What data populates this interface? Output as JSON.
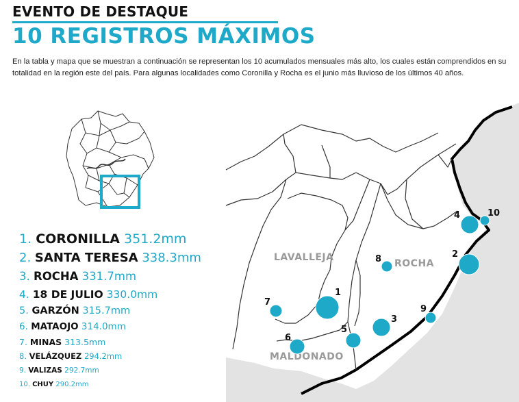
{
  "header": {
    "kicker": "EVENTO DE DESTAQUE",
    "title": "10 REGISTROS MÁXIMOS"
  },
  "intro": {
    "line1": "En la tabla y mapa que se muestran a continuación se representan los 10 acumulados mensuales más alto, los cuales están comprendidos en su",
    "line2": "totalidad en la región este del país. Para algunas localidades como Coronilla y Rocha es el junio más lluvioso de los últimos 40 años."
  },
  "colors": {
    "accent": "#1fa9c9",
    "text": "#111111",
    "region_label": "#9a9a9a",
    "marker": "#1fa9c9"
  },
  "ranking": [
    {
      "num": "1.",
      "name": "CORONILLA",
      "value": "351.2mm"
    },
    {
      "num": "2.",
      "name": "SANTA TERESA",
      "value": "338.3mm"
    },
    {
      "num": "3.",
      "name": "ROCHA",
      "value": "331.7mm"
    },
    {
      "num": "4.",
      "name": "18 DE JULIO",
      "value": "330.0mm"
    },
    {
      "num": "5.",
      "name": "GARZÓN",
      "value": "315.7mm"
    },
    {
      "num": "6.",
      "name": "MATAOJO",
      "value": "314.0mm"
    },
    {
      "num": "7.",
      "name": "MINAS",
      "value": "313.5mm"
    },
    {
      "num": "8.",
      "name": "VELÁZQUEZ",
      "value": "294.2mm"
    },
    {
      "num": "9.",
      "name": "VALIZAS",
      "value": "292.7mm"
    },
    {
      "num": "10.",
      "name": "CHUY",
      "value": "290.2mm"
    }
  ],
  "map": {
    "regions": [
      "LAVALLEJA",
      "ROCHA",
      "MALDONADO"
    ],
    "markers": [
      {
        "label": "1",
        "value_mm": 351.2
      },
      {
        "label": "2",
        "value_mm": 338.3
      },
      {
        "label": "3",
        "value_mm": 331.7
      },
      {
        "label": "4",
        "value_mm": 330.0
      },
      {
        "label": "5",
        "value_mm": 315.7
      },
      {
        "label": "6",
        "value_mm": 314.0
      },
      {
        "label": "7",
        "value_mm": 313.5
      },
      {
        "label": "8",
        "value_mm": 294.2
      },
      {
        "label": "9",
        "value_mm": 292.7
      },
      {
        "label": "10",
        "value_mm": 290.2
      }
    ]
  }
}
